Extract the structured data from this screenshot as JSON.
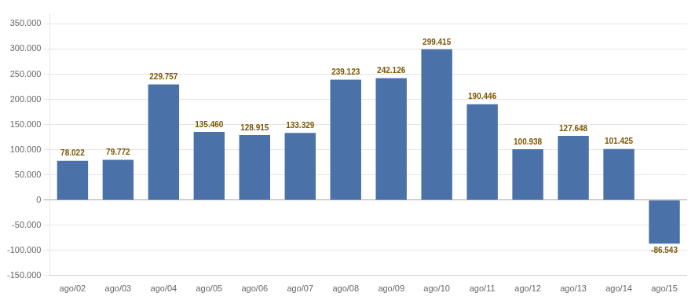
{
  "chart_data": {
    "type": "bar",
    "categories": [
      "ago/02",
      "ago/03",
      "ago/04",
      "ago/05",
      "ago/06",
      "ago/07",
      "ago/08",
      "ago/09",
      "ago/10",
      "ago/11",
      "ago/12",
      "ago/13",
      "ago/14",
      "ago/15"
    ],
    "values": [
      78022,
      79772,
      229757,
      135460,
      128915,
      133329,
      239123,
      242126,
      299415,
      190446,
      100938,
      127648,
      101425,
      -86543
    ],
    "value_labels": [
      "78.022",
      "79.772",
      "229.757",
      "135.460",
      "128.915",
      "133.329",
      "239.123",
      "242.126",
      "299.415",
      "190.446",
      "100.938",
      "127.648",
      "101.425",
      "-86.543"
    ],
    "color": "#4a72a8",
    "data_labels": true,
    "ylim": [
      -150000,
      370000
    ],
    "yticks": [
      {
        "value": -150000,
        "label": "-150.000"
      },
      {
        "value": -100000,
        "label": "-100.000"
      },
      {
        "value": -50000,
        "label": "-50.000"
      },
      0,
      {
        "value": 50000,
        "label": "50.000"
      },
      {
        "value": 100000,
        "label": "100.000"
      },
      {
        "value": 150000,
        "label": "150.000"
      },
      {
        "value": 200000,
        "label": "200.000"
      },
      {
        "value": 250000,
        "label": "250.000"
      },
      {
        "value": 300000,
        "label": "300.000"
      },
      {
        "value": 350000,
        "label": "350.000"
      }
    ],
    "grid": true
  }
}
